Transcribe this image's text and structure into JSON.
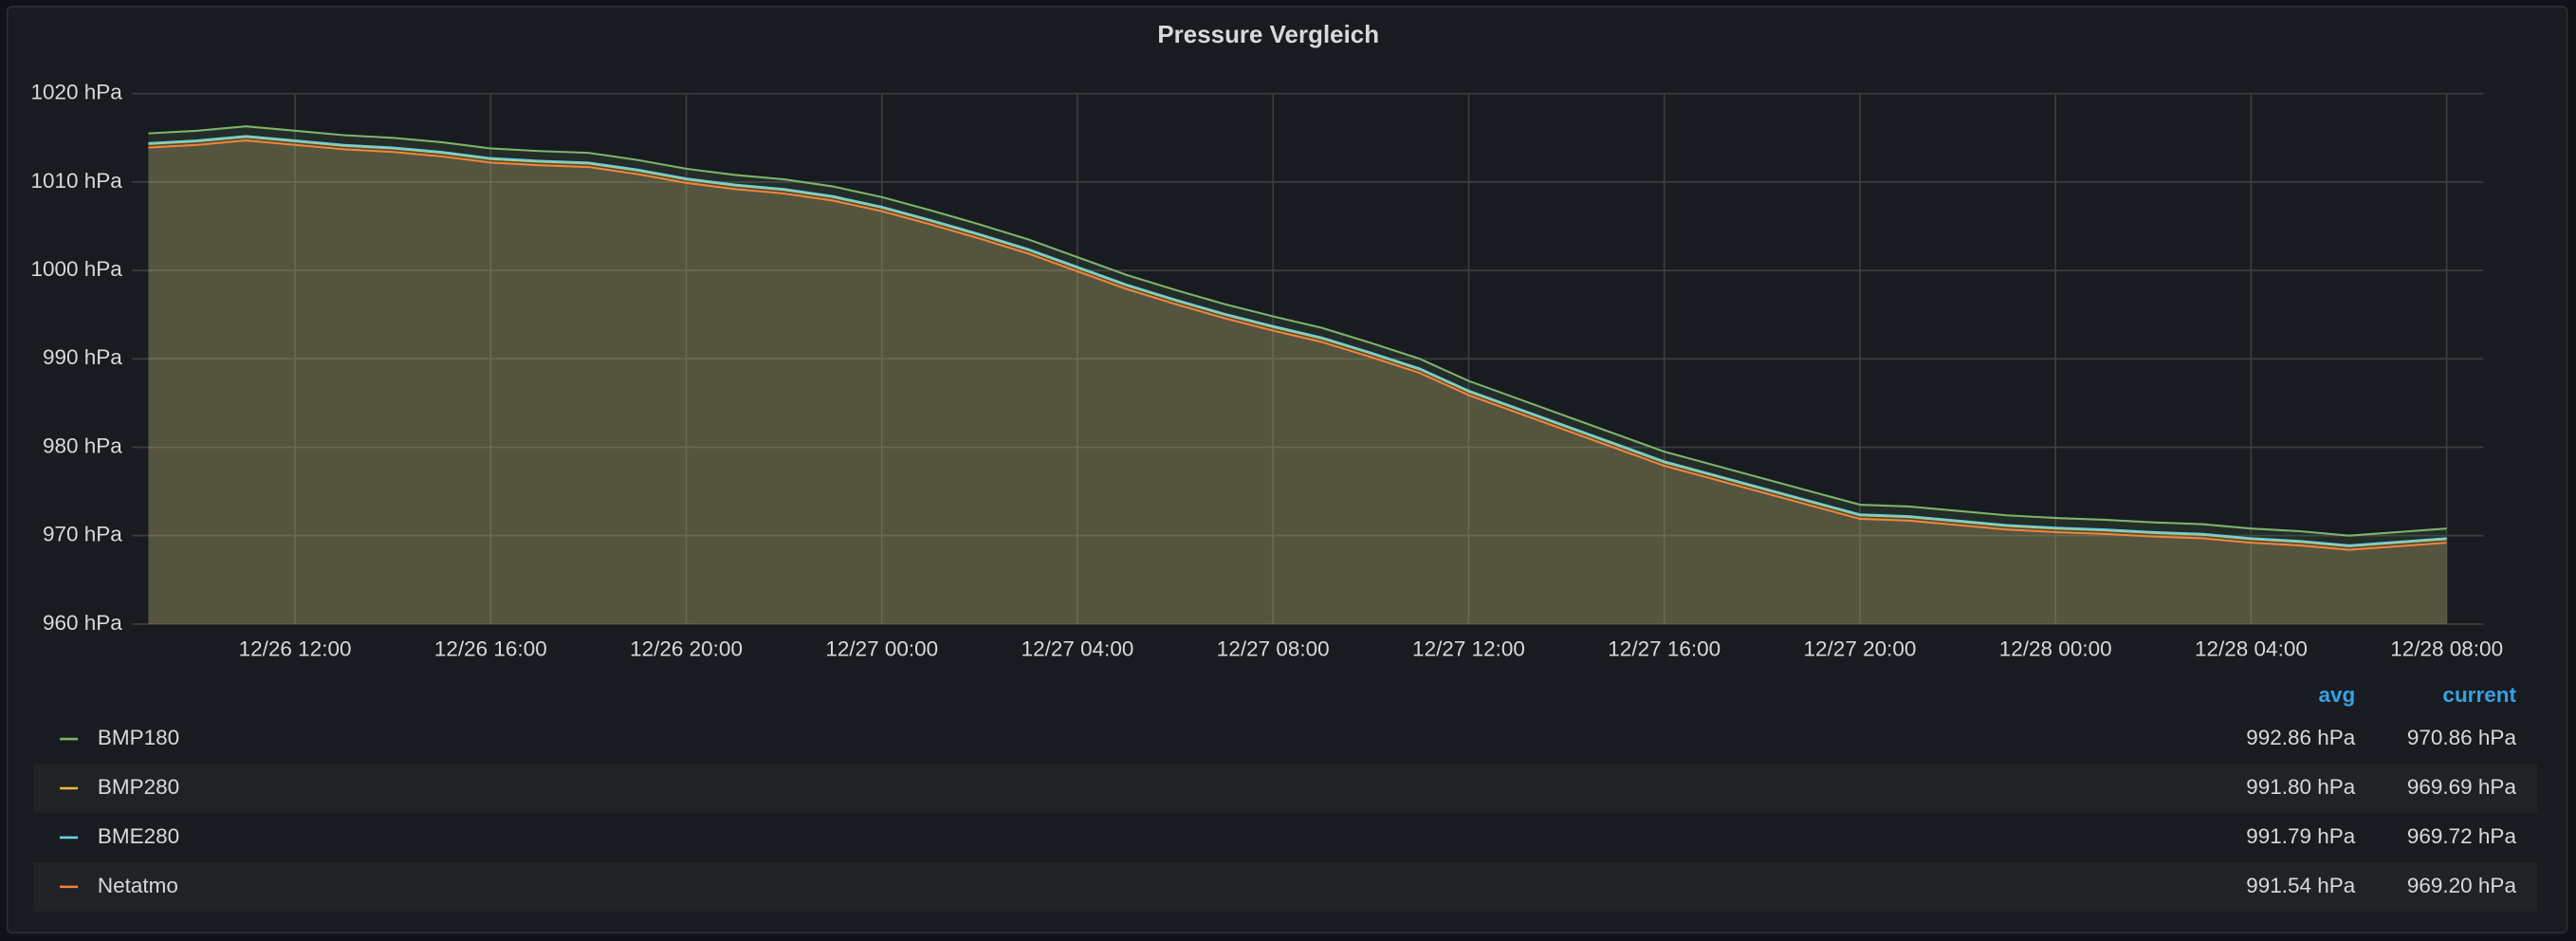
{
  "chart_data": {
    "type": "line",
    "title": "Pressure Vergleich",
    "x": [
      "12/26 09:00",
      "12/26 10:00",
      "12/26 11:00",
      "12/26 12:00",
      "12/26 13:00",
      "12/26 14:00",
      "12/26 15:00",
      "12/26 16:00",
      "12/26 17:00",
      "12/26 18:00",
      "12/26 19:00",
      "12/26 20:00",
      "12/26 21:00",
      "12/26 22:00",
      "12/26 23:00",
      "12/27 00:00",
      "12/27 01:00",
      "12/27 02:00",
      "12/27 03:00",
      "12/27 04:00",
      "12/27 05:00",
      "12/27 06:00",
      "12/27 07:00",
      "12/27 08:00",
      "12/27 09:00",
      "12/27 10:00",
      "12/27 11:00",
      "12/27 12:00",
      "12/27 13:00",
      "12/27 14:00",
      "12/27 15:00",
      "12/27 16:00",
      "12/27 17:00",
      "12/27 18:00",
      "12/27 19:00",
      "12/27 20:00",
      "12/27 21:00",
      "12/27 22:00",
      "12/27 23:00",
      "12/28 00:00",
      "12/28 01:00",
      "12/28 02:00",
      "12/28 03:00",
      "12/28 04:00",
      "12/28 05:00",
      "12/28 06:00",
      "12/28 07:00",
      "12/28 08:00"
    ],
    "xlim": [
      "12/26 08:40",
      "12/28 08:45"
    ],
    "xticks": [
      "12/26 12:00",
      "12/26 16:00",
      "12/26 20:00",
      "12/27 00:00",
      "12/27 04:00",
      "12/27 08:00",
      "12/27 12:00",
      "12/27 16:00",
      "12/27 20:00",
      "12/28 00:00",
      "12/28 04:00",
      "12/28 08:00"
    ],
    "ylim": [
      960,
      1020
    ],
    "yticks": [
      {
        "value": 960,
        "label": "960 hPa"
      },
      {
        "value": 970,
        "label": "970 hPa"
      },
      {
        "value": 980,
        "label": "980 hPa"
      },
      {
        "value": 990,
        "label": "990 hPa"
      },
      {
        "value": 1000,
        "label": "1000 hPa"
      },
      {
        "value": 1010,
        "label": "1010 hPa"
      },
      {
        "value": 1020,
        "label": "1020 hPa"
      }
    ],
    "grid": true,
    "fill": true,
    "legend_columns": [
      "avg",
      "current"
    ],
    "series": [
      {
        "name": "BMP180",
        "color": "#7eb26d",
        "avg": "992.86 hPa",
        "current": "970.86 hPa",
        "values": [
          1015.5,
          1015.8,
          1016.3,
          1015.8,
          1015.3,
          1015,
          1014.5,
          1013.8,
          1013.5,
          1013.3,
          1012.5,
          1011.5,
          1010.8,
          1010.3,
          1009.5,
          1008.3,
          1006.8,
          1005.2,
          1003.5,
          1001.5,
          999.5,
          997.8,
          996.2,
          994.8,
          993.5,
          991.8,
          990,
          987.5,
          985.5,
          983.5,
          981.5,
          979.5,
          978,
          976.5,
          975,
          973.5,
          973.3,
          972.8,
          972.3,
          972,
          971.8,
          971.5,
          971.3,
          970.8,
          970.5,
          970,
          970.4,
          970.8
        ]
      },
      {
        "name": "BMP280",
        "color": "#eab839",
        "avg": "991.80 hPa",
        "current": "969.69 hPa",
        "values": [
          1014.3,
          1014.6,
          1015.1,
          1014.6,
          1014.1,
          1013.8,
          1013.3,
          1012.6,
          1012.3,
          1012.1,
          1011.3,
          1010.3,
          1009.6,
          1009.1,
          1008.3,
          1007.1,
          1005.6,
          1004.0,
          1002.3,
          1000.3,
          998.3,
          996.6,
          995.0,
          993.6,
          992.3,
          990.6,
          988.8,
          986.3,
          984.3,
          982.3,
          980.3,
          978.3,
          976.8,
          975.3,
          973.8,
          972.3,
          972.1,
          971.6,
          971.1,
          970.8,
          970.6,
          970.3,
          970.1,
          969.6,
          969.3,
          968.8,
          969.2,
          969.6
        ]
      },
      {
        "name": "BME280",
        "color": "#6ed0e0",
        "avg": "991.79 hPa",
        "current": "969.72 hPa",
        "values": [
          1014.4,
          1014.7,
          1015.2,
          1014.7,
          1014.2,
          1013.9,
          1013.4,
          1012.7,
          1012.4,
          1012.2,
          1011.4,
          1010.4,
          1009.7,
          1009.2,
          1008.4,
          1007.2,
          1005.7,
          1004.1,
          1002.4,
          1000.4,
          998.4,
          996.7,
          995.1,
          993.7,
          992.4,
          990.7,
          988.9,
          986.4,
          984.4,
          982.4,
          980.4,
          978.4,
          976.9,
          975.4,
          973.9,
          972.4,
          972.2,
          971.7,
          971.2,
          970.9,
          970.7,
          970.4,
          970.2,
          969.7,
          969.4,
          968.9,
          969.3,
          969.7
        ]
      },
      {
        "name": "Netatmo",
        "color": "#ef843c",
        "avg": "991.54 hPa",
        "current": "969.20 hPa",
        "values": [
          1013.9,
          1014.2,
          1014.7,
          1014.2,
          1013.7,
          1013.4,
          1012.9,
          1012.2,
          1011.9,
          1011.7,
          1010.9,
          1009.9,
          1009.2,
          1008.7,
          1007.9,
          1006.7,
          1005.2,
          1003.6,
          1001.9,
          999.9,
          997.9,
          996.2,
          994.6,
          993.2,
          991.9,
          990.2,
          988.4,
          985.9,
          983.9,
          981.9,
          979.9,
          977.9,
          976.4,
          974.9,
          973.4,
          971.9,
          971.7,
          971.2,
          970.7,
          970.4,
          970.2,
          969.9,
          969.7,
          969.2,
          968.9,
          968.4,
          968.8,
          969.2
        ]
      }
    ]
  }
}
